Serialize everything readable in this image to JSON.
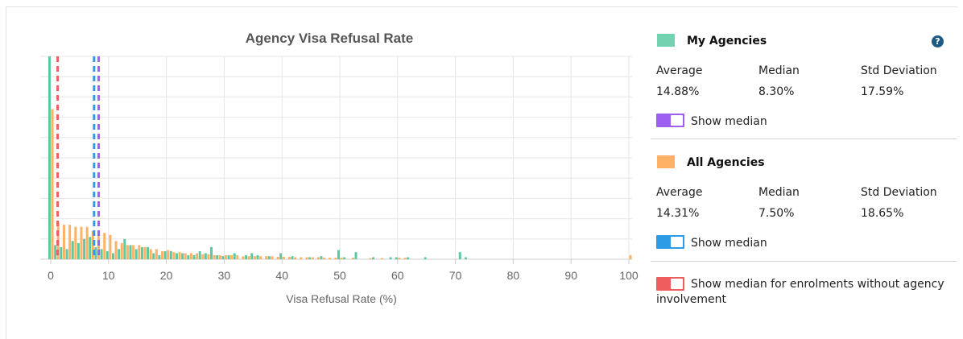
{
  "chart_data": {
    "type": "bar",
    "title": "Agency Visa Refusal Rate",
    "xlabel": "Visa Refusal Rate (%)",
    "ylabel": "",
    "xlim": [
      0,
      100
    ],
    "ylim": [
      0,
      10
    ],
    "x_ticks": [
      0,
      10,
      20,
      30,
      40,
      50,
      60,
      70,
      80,
      90,
      100
    ],
    "grid": true,
    "series": [
      {
        "color": "#5cc99f",
        "values": [
          [
            0,
            10
          ],
          [
            1,
            0.7
          ],
          [
            2,
            0.6
          ],
          [
            3,
            0.5
          ],
          [
            4,
            0.9
          ],
          [
            5,
            0.8
          ],
          [
            6,
            1.0
          ],
          [
            7,
            1.1
          ],
          [
            8,
            0.6
          ],
          [
            9,
            0.5
          ],
          [
            10,
            0.4
          ],
          [
            11,
            0.3
          ],
          [
            12,
            0.5
          ],
          [
            13,
            1.0
          ],
          [
            14,
            0.7
          ],
          [
            15,
            0.5
          ],
          [
            16,
            0.6
          ],
          [
            17,
            0.6
          ],
          [
            18,
            0.3
          ],
          [
            19,
            0.2
          ],
          [
            20,
            0.4
          ],
          [
            21,
            0.4
          ],
          [
            22,
            0.3
          ],
          [
            23,
            0.3
          ],
          [
            24,
            0.2
          ],
          [
            25,
            0.2
          ],
          [
            26,
            0.4
          ],
          [
            27,
            0.3
          ],
          [
            28,
            0.6
          ],
          [
            29,
            0.2
          ],
          [
            30,
            0.15
          ],
          [
            31,
            0.2
          ],
          [
            32,
            0.3
          ],
          [
            34,
            0.2
          ],
          [
            35,
            0.3
          ],
          [
            36,
            0.2
          ],
          [
            38,
            0.15
          ],
          [
            40,
            0.3
          ],
          [
            42,
            0.15
          ],
          [
            45,
            0.1
          ],
          [
            47,
            0.15
          ],
          [
            50,
            0.45
          ],
          [
            51,
            0.1
          ],
          [
            53,
            0.35
          ],
          [
            56,
            0.1
          ],
          [
            59,
            0.1
          ],
          [
            60,
            0.1
          ],
          [
            62,
            0.1
          ],
          [
            65,
            0.1
          ],
          [
            71,
            0.35
          ],
          [
            72,
            0.1
          ]
        ]
      },
      {
        "color": "#ffb266",
        "values": [
          [
            0,
            7.4
          ],
          [
            1,
            1.8
          ],
          [
            2,
            1.7
          ],
          [
            3,
            1.7
          ],
          [
            4,
            1.6
          ],
          [
            5,
            1.6
          ],
          [
            6,
            1.6
          ],
          [
            7,
            1.4
          ],
          [
            8,
            1.3
          ],
          [
            9,
            1.3
          ],
          [
            10,
            1.2
          ],
          [
            11,
            0.9
          ],
          [
            12,
            0.8
          ],
          [
            13,
            0.7
          ],
          [
            14,
            0.7
          ],
          [
            15,
            0.7
          ],
          [
            16,
            0.6
          ],
          [
            17,
            0.5
          ],
          [
            18,
            0.5
          ],
          [
            19,
            0.4
          ],
          [
            20,
            0.45
          ],
          [
            21,
            0.35
          ],
          [
            22,
            0.35
          ],
          [
            23,
            0.3
          ],
          [
            24,
            0.3
          ],
          [
            25,
            0.3
          ],
          [
            26,
            0.25
          ],
          [
            27,
            0.25
          ],
          [
            28,
            0.2
          ],
          [
            29,
            0.2
          ],
          [
            30,
            0.2
          ],
          [
            31,
            0.2
          ],
          [
            32,
            0.2
          ],
          [
            33,
            0.15
          ],
          [
            34,
            0.15
          ],
          [
            35,
            0.15
          ],
          [
            36,
            0.15
          ],
          [
            37,
            0.15
          ],
          [
            38,
            0.15
          ],
          [
            39,
            0.12
          ],
          [
            40,
            0.12
          ],
          [
            41,
            0.12
          ],
          [
            42,
            0.1
          ],
          [
            43,
            0.1
          ],
          [
            44,
            0.1
          ],
          [
            45,
            0.1
          ],
          [
            46,
            0.1
          ],
          [
            47,
            0.08
          ],
          [
            48,
            0.08
          ],
          [
            49,
            0.08
          ],
          [
            50,
            0.08
          ],
          [
            52,
            0.08
          ],
          [
            55,
            0.06
          ],
          [
            57,
            0.06
          ],
          [
            60,
            0.08
          ],
          [
            61,
            0.08
          ],
          [
            100,
            0.2
          ]
        ]
      }
    ],
    "median_lines": [
      {
        "x": 1.2,
        "color": "#ef5e5e"
      },
      {
        "x": 7.5,
        "color": "#2e9be6"
      },
      {
        "x": 8.3,
        "color": "#9c5ff0"
      }
    ]
  },
  "panel": {
    "help_glyph": "?",
    "my": {
      "title": "My Agencies",
      "color": "#73d3b0",
      "avg_label": "Average",
      "avg": "14.88%",
      "median_label": "Median",
      "median": "8.30%",
      "std_label": "Std Deviation",
      "std": "17.59%",
      "toggle_color": "#9c5ff0",
      "toggle_label": "Show median"
    },
    "all": {
      "title": "All Agencies",
      "color": "#ffb266",
      "avg_label": "Average",
      "avg": "14.31%",
      "median_label": "Median",
      "median": "7.50%",
      "std_label": "Std Deviation",
      "std": "18.65%",
      "toggle_color": "#2e9be6",
      "toggle_label": "Show median"
    },
    "noagency": {
      "toggle_color": "#ef5e5e",
      "toggle_label_line1": "Show median for enrolments without agency",
      "toggle_label_line2": "involvement"
    }
  }
}
